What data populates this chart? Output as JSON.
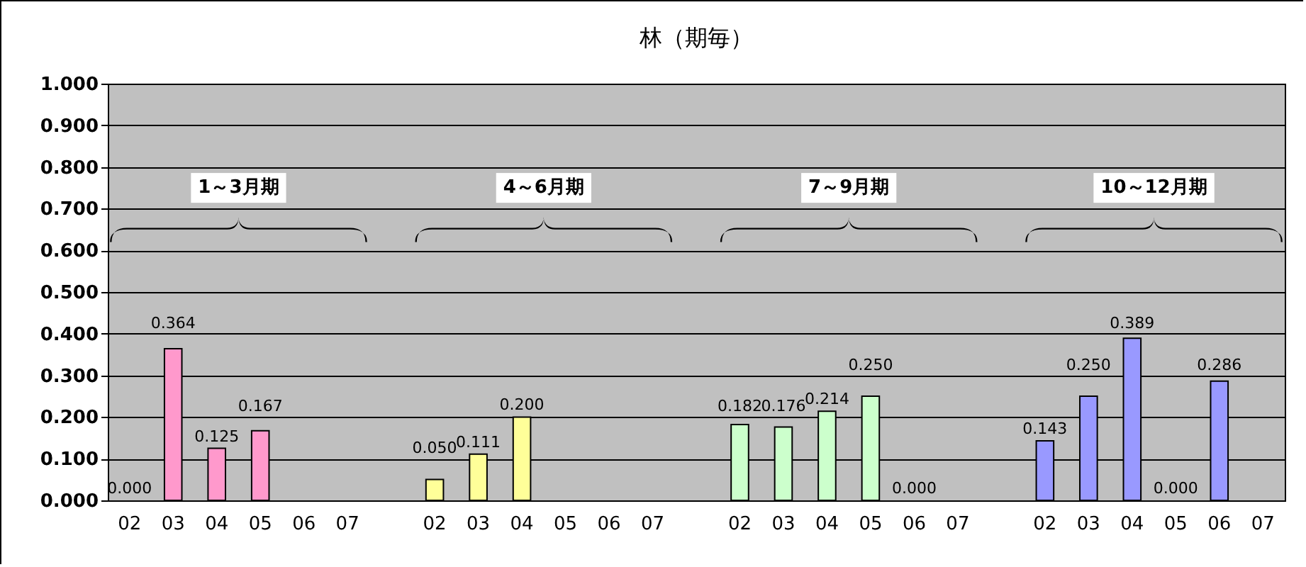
{
  "chart_data": {
    "type": "bar",
    "title": "林（期毎）",
    "categories": [
      "02",
      "03",
      "04",
      "05",
      "06",
      "07",
      null,
      "02",
      "03",
      "04",
      "05",
      "06",
      "07",
      null,
      "02",
      "03",
      "04",
      "05",
      "06",
      "07",
      null,
      "02",
      "03",
      "04",
      "05",
      "06",
      "07"
    ],
    "values": [
      0.0,
      0.364,
      0.125,
      0.167,
      null,
      null,
      null,
      0.05,
      0.111,
      0.2,
      null,
      null,
      null,
      null,
      0.182,
      0.176,
      0.214,
      0.25,
      0.0,
      null,
      null,
      0.143,
      0.25,
      0.389,
      0.0,
      0.286,
      null
    ],
    "value_labels": [
      "0.000",
      "0.364",
      "0.125",
      "0.167",
      null,
      null,
      null,
      "0.050",
      "0.111",
      "0.200",
      null,
      null,
      null,
      null,
      "0.182",
      "0.176",
      "0.214",
      "0.250",
      "0.000",
      null,
      null,
      "0.143",
      "0.250",
      "0.389",
      "0.000",
      "0.286",
      null
    ],
    "colors": [
      "#ff99cc",
      "#ff99cc",
      "#ff99cc",
      "#ff99cc",
      "#ff99cc",
      "#ff99cc",
      null,
      "#ffff99",
      "#ffff99",
      "#ffff99",
      "#ffff99",
      "#ffff99",
      "#ffff99",
      null,
      "#ccffcc",
      "#ccffcc",
      "#ccffcc",
      "#ccffcc",
      "#ccffcc",
      "#ccffcc",
      null,
      "#9999ff",
      "#9999ff",
      "#9999ff",
      "#9999ff",
      "#9999ff",
      "#9999ff"
    ],
    "ylim": [
      0,
      1
    ],
    "yticks": [
      {
        "value": 0,
        "label": "0.000"
      },
      {
        "value": 0.1,
        "label": "0.100"
      },
      {
        "value": 0.2,
        "label": "0.200"
      },
      {
        "value": 0.3,
        "label": "0.300"
      },
      {
        "value": 0.4,
        "label": "0.400"
      },
      {
        "value": 0.5,
        "label": "0.500"
      },
      {
        "value": 0.6,
        "label": "0.600"
      },
      {
        "value": 0.7,
        "label": "0.700"
      },
      {
        "value": 0.8,
        "label": "0.800"
      },
      {
        "value": 0.9,
        "label": "0.900"
      },
      {
        "value": 1,
        "label": "1.000"
      }
    ],
    "grid": "y",
    "annotations": [
      "1～3月期",
      "4～6月期",
      "7～9月期",
      "10～12月期"
    ]
  }
}
